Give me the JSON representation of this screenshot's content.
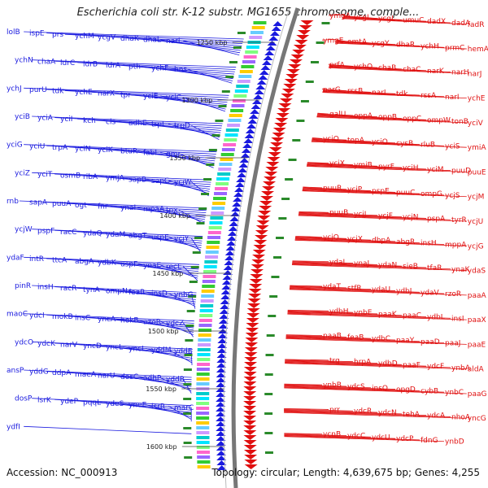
{
  "header": {
    "title": "Escherichia coli str. K-12 substr. MG1655 chromosome, comple..."
  },
  "footer": {
    "accession": "Accession: NC_000913",
    "summary": "Topology: circular; Length: 4,639,675 bp; Genes: 4,255"
  },
  "colors": {
    "left_strand": "#1a1adf",
    "right_strand": "#e01010",
    "backbone": "#777777"
  },
  "ruler": [
    "1250 kbp",
    "1300 kbp",
    "1350 kbp",
    "1400 kbp",
    "1450 kbp",
    "1500 kbp",
    "1550 kbp",
    "1600 kbp"
  ],
  "left_genes": [
    "lolB",
    "ispE",
    "prs",
    "ychM",
    "ycgV",
    "dhaK",
    "dhaL",
    "narL",
    "ychN",
    "chaA",
    "ldrC",
    "ldrB",
    "ldrA",
    "pth",
    "ychF",
    "hns",
    "ychJ",
    "purU",
    "tdk",
    "ychE",
    "narX",
    "tpr",
    "yciE",
    "yciC",
    "yciB",
    "yciA",
    "yciI",
    "kch",
    "cls",
    "adhE",
    "trpL",
    "trpD",
    "yciG",
    "yciU",
    "trpA",
    "yciN",
    "yciK",
    "btuR",
    "fabI",
    "gmr",
    "yciZ",
    "yciT",
    "osmB",
    "ribA",
    "ymjA",
    "sapB",
    "sapC",
    "yciW",
    "rnb",
    "sapA",
    "puuA",
    "ogt",
    "fnr",
    "ynaI",
    "mpaA",
    "tpx",
    "ycjW",
    "pspF",
    "racC",
    "ydaQ",
    "ydaM",
    "abgT",
    "uspE",
    "ycjY",
    "ydaF",
    "intR",
    "ttcA",
    "abgA",
    "ydbK",
    "uspF",
    "ynaE",
    "recE",
    "pinR",
    "insH",
    "racR",
    "tynA",
    "ompN",
    "feaR",
    "insD",
    "ynbG",
    "maoC",
    "ydcI",
    "mokB",
    "insC",
    "yncA",
    "hokB",
    "azoR",
    "ydcZ",
    "ydcO",
    "ydcK",
    "narV",
    "yncD",
    "yncL",
    "yncI",
    "yddM",
    "yddE",
    "ansP",
    "yddG",
    "ddpA",
    "maeA",
    "narU",
    "dosC",
    "adhP",
    "yddB",
    "dosP",
    "lsrK",
    "ydeP",
    "pqqL",
    "ydeS",
    "yneE",
    "lsrR",
    "marC",
    "ydfI"
  ],
  "right_genes": [
    "ymgA",
    "ycgI",
    "ycgL",
    "umuC",
    "dadX",
    "dadA",
    "fadR",
    "ymgE",
    "emtA",
    "ycgY",
    "dhaR",
    "ychH",
    "prmC",
    "hemA",
    "prfA",
    "ychO",
    "chaB",
    "chaC",
    "narK",
    "narH",
    "narJ",
    "narG",
    "rssB",
    "narI",
    "tdk",
    "rssA",
    "narI",
    "ychE",
    "galU",
    "oppA",
    "oppB",
    "oppC",
    "ompW",
    "tonB",
    "yciV",
    "yciO",
    "topA",
    "yciQ",
    "cysB",
    "rluB",
    "yciS",
    "ymiA",
    "yciX",
    "ymiB",
    "pyrF",
    "yciH",
    "yciM",
    "puuD",
    "puuE",
    "puuR",
    "ycjP",
    "pspE",
    "puuC",
    "ompG",
    "ycjS",
    "ycjM",
    "puuB",
    "ycjJ",
    "ycjF",
    "ycjN",
    "pspA",
    "tyrR",
    "ycjU",
    "ycjQ",
    "ycjX",
    "dbpA",
    "abgR",
    "insH",
    "mppA",
    "ycjG",
    "ydaL",
    "ynaJ",
    "ydaN",
    "sieB",
    "tfaR",
    "ynaK",
    "ydaS",
    "ydaT",
    "stfR",
    "ydaU",
    "ydbJ",
    "ydaV",
    "rzoR",
    "paaA",
    "ydbH",
    "ynbE",
    "paaK",
    "paaC",
    "ydbL",
    "insI",
    "paaX",
    "paaB",
    "feaB",
    "ydbC",
    "paaY",
    "paaD",
    "paaJ",
    "paaE",
    "trg",
    "hrpA",
    "ydbD",
    "paaF",
    "ydcF",
    "ynbA",
    "aldA",
    "ynbB",
    "ydcS",
    "insQ",
    "opgD",
    "cybB",
    "ynbC",
    "paaG",
    "prr",
    "ydcR",
    "ydcN",
    "tehA",
    "ydcA",
    "nhoA",
    "yncG",
    "ycnB",
    "ydcC",
    "ydcU",
    "ydcP",
    "fdnG",
    "ynbD"
  ],
  "legend_note": ""
}
